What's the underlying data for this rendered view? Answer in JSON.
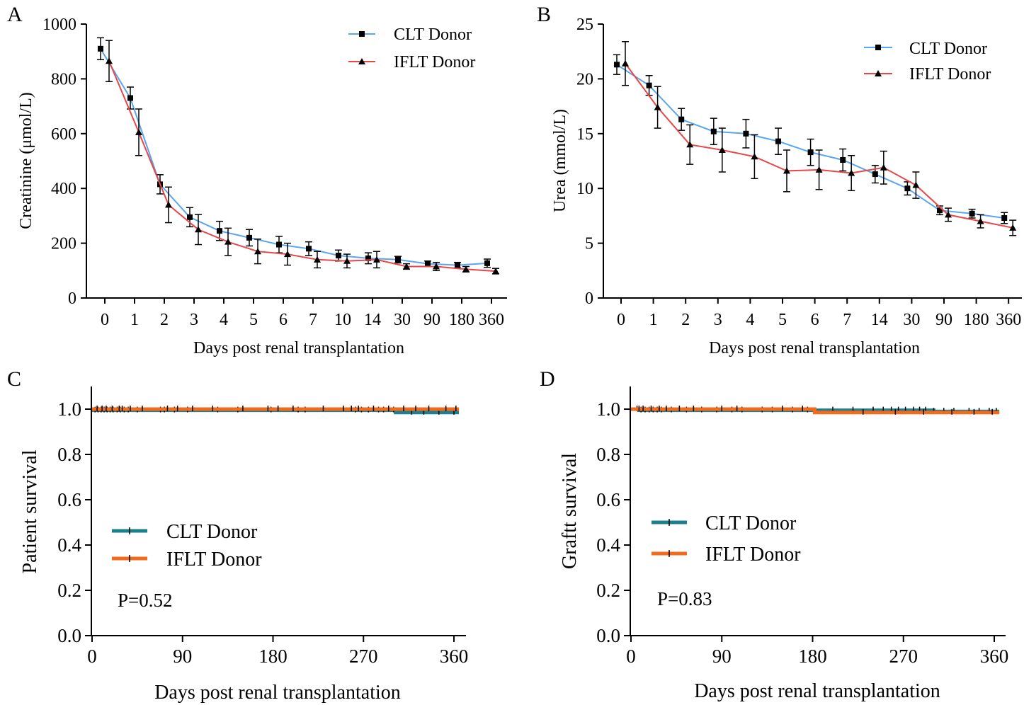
{
  "panels": {
    "A": {
      "letter": "A",
      "xlabel": "Days post renal transplantation",
      "ylabel": "Creatinine (μmol/L)",
      "legend": [
        "CLT Donor",
        "IFLT Donor"
      ]
    },
    "B": {
      "letter": "B",
      "xlabel": "Days post renal transplantation",
      "ylabel": "Urea (mmol/L)",
      "legend": [
        "CLT Donor",
        "IFLT Donor"
      ]
    },
    "C": {
      "letter": "C",
      "xlabel": "Days post renal transplantation",
      "ylabel": "Patient survival",
      "legend": [
        "CLT Donor",
        "IFLT Donor"
      ],
      "pvalue": "P=0.52"
    },
    "D": {
      "letter": "D",
      "xlabel": "Days post renal transplantation",
      "ylabel": "Graftt survival",
      "legend": [
        "CLT Donor",
        "IFLT Donor"
      ],
      "pvalue": "P=0.83"
    }
  },
  "colors": {
    "clt_line": "#5aa5ef",
    "iflt_line": "#e8474a",
    "clt_km": "#1b7f8f",
    "iflt_km": "#f26a1b",
    "marker": "#000000"
  },
  "chart_data": [
    {
      "panel": "A",
      "type": "line",
      "categories": [
        "0",
        "1",
        "2",
        "3",
        "4",
        "5",
        "6",
        "7",
        "10",
        "14",
        "30",
        "90",
        "180",
        "360"
      ],
      "ylabel": "Creatinine (μmol/L)",
      "xlabel": "Days post renal transplantation",
      "ylim": [
        0,
        1000
      ],
      "yticks": [
        0,
        200,
        400,
        600,
        800,
        1000
      ],
      "legend_position": "top-right",
      "series": [
        {
          "name": "CLT Donor",
          "marker": "square",
          "values": [
            910,
            730,
            415,
            295,
            245,
            220,
            195,
            180,
            155,
            145,
            140,
            125,
            120,
            127
          ],
          "errors": [
            40,
            40,
            35,
            35,
            35,
            30,
            30,
            25,
            20,
            20,
            12,
            10,
            10,
            15
          ]
        },
        {
          "name": "IFLT Donor",
          "marker": "triangle",
          "values": [
            865,
            605,
            340,
            250,
            205,
            170,
            160,
            140,
            135,
            140,
            115,
            115,
            105,
            98
          ],
          "errors": [
            75,
            85,
            65,
            55,
            50,
            45,
            40,
            30,
            25,
            30,
            10,
            15,
            10,
            10
          ]
        }
      ]
    },
    {
      "panel": "B",
      "type": "line",
      "categories": [
        "0",
        "1",
        "2",
        "3",
        "4",
        "5",
        "6",
        "7",
        "14",
        "30",
        "90",
        "180",
        "360"
      ],
      "ylabel": "Urea (mmol/L)",
      "xlabel": "Days post renal transplantation",
      "ylim": [
        0,
        25
      ],
      "yticks": [
        0,
        5,
        10,
        15,
        20,
        25
      ],
      "legend_position": "top-right",
      "series": [
        {
          "name": "CLT Donor",
          "marker": "square",
          "values": [
            21.3,
            19.4,
            16.3,
            15.2,
            15.0,
            14.3,
            13.3,
            12.6,
            11.3,
            10.0,
            8.0,
            7.7,
            7.3
          ],
          "errors": [
            0.9,
            0.9,
            1.0,
            1.2,
            1.3,
            1.2,
            1.2,
            1.0,
            0.8,
            0.6,
            0.4,
            0.4,
            0.5
          ]
        },
        {
          "name": "IFLT Donor",
          "marker": "triangle",
          "values": [
            21.4,
            17.4,
            14.0,
            13.5,
            12.9,
            11.6,
            11.7,
            11.4,
            11.9,
            10.3,
            7.6,
            7.0,
            6.4
          ],
          "errors": [
            2.0,
            1.9,
            1.8,
            2.0,
            2.0,
            1.9,
            1.8,
            1.6,
            1.5,
            1.2,
            0.6,
            0.6,
            0.7
          ]
        }
      ]
    },
    {
      "panel": "C",
      "type": "line",
      "subtype": "kaplan-meier",
      "xlabel": "Days post renal transplantation",
      "ylabel": "Patient survival",
      "xlim": [
        0,
        365
      ],
      "ylim": [
        0,
        1.1
      ],
      "xticks": [
        0,
        90,
        180,
        270,
        360
      ],
      "yticks": [
        0.0,
        0.2,
        0.4,
        0.6,
        0.8,
        1.0
      ],
      "legend_position": "middle-left",
      "annotation": "P=0.52",
      "series": [
        {
          "name": "CLT Donor",
          "steps": [
            [
              0,
              0.995
            ],
            [
              302,
              0.985
            ],
            [
              365,
              0.985
            ]
          ],
          "censor_marks": [
            3,
            6,
            9,
            12,
            15,
            18,
            21,
            25,
            28,
            32,
            36,
            45,
            68,
            72,
            82,
            95,
            125,
            145,
            178,
            205,
            212,
            262,
            268,
            275,
            285,
            290,
            300,
            318,
            330,
            345,
            360
          ]
        },
        {
          "name": "IFLT Donor",
          "steps": [
            [
              0,
              1.0
            ],
            [
              365,
              1.0
            ]
          ],
          "censor_marks": [
            5,
            10,
            14,
            20,
            27,
            30,
            38,
            50,
            75,
            85,
            100,
            120,
            150,
            175,
            185,
            200,
            230,
            250,
            258,
            265,
            280,
            295,
            310,
            322,
            335,
            352,
            362
          ]
        }
      ]
    },
    {
      "panel": "D",
      "type": "line",
      "subtype": "kaplan-meier",
      "xlabel": "Days post renal transplantation",
      "ylabel": "Graftt survival",
      "xlim": [
        0,
        365
      ],
      "ylim": [
        0,
        1.1
      ],
      "xticks": [
        0,
        90,
        180,
        270,
        360
      ],
      "yticks": [
        0.0,
        0.2,
        0.4,
        0.6,
        0.8,
        1.0
      ],
      "legend_position": "middle-left",
      "annotation": "P=0.83",
      "series": [
        {
          "name": "CLT Donor",
          "steps": [
            [
              0,
              1.0
            ],
            [
              8,
              0.995
            ],
            [
              300,
              0.99
            ],
            [
              365,
              0.99
            ]
          ],
          "censor_marks": [
            6,
            10,
            14,
            18,
            22,
            26,
            30,
            40,
            55,
            70,
            85,
            100,
            110,
            130,
            140,
            160,
            175,
            200,
            220,
            240,
            250,
            258,
            265,
            272,
            280,
            286,
            292,
            300,
            310,
            320,
            335,
            345,
            355,
            362
          ]
        },
        {
          "name": "IFLT Donor",
          "steps": [
            [
              0,
              1.0
            ],
            [
              182,
              0.985
            ],
            [
              365,
              0.985
            ]
          ],
          "censor_marks": [
            8,
            12,
            20,
            28,
            35,
            48,
            62,
            90,
            105,
            150,
            170,
            230,
            262,
            290,
            318,
            340,
            358
          ]
        }
      ]
    }
  ]
}
